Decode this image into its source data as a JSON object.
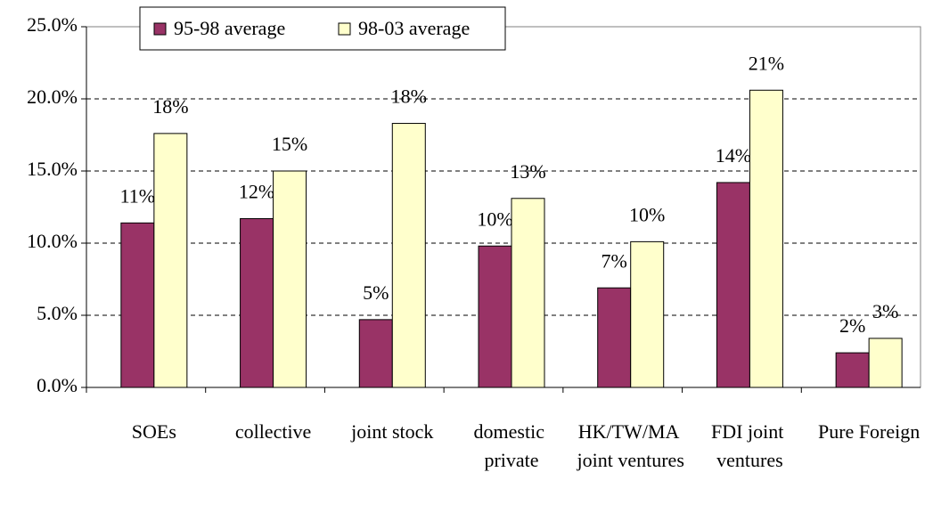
{
  "chart_data": {
    "type": "bar",
    "categories": [
      "SOEs",
      "collective",
      "joint stock",
      "domestic private",
      "HK/TW/MA joint ventures",
      "FDI joint ventures",
      "Pure Foreign"
    ],
    "series": [
      {
        "name": "95-98 average",
        "color": "#993366",
        "values": [
          11.4,
          11.7,
          4.7,
          9.8,
          6.9,
          14.2,
          2.4
        ],
        "value_labels": [
          "11%",
          "12%",
          "5%",
          "10%",
          "7%",
          "14%",
          "2%"
        ]
      },
      {
        "name": "98-03 average",
        "color": "#FFFFCC",
        "values": [
          17.6,
          15.0,
          18.3,
          13.1,
          10.1,
          20.6,
          3.4
        ],
        "value_labels": [
          "18%",
          "15%",
          "18%",
          "13%",
          "10%",
          "21%",
          "3%"
        ]
      }
    ],
    "ylim": [
      0,
      25
    ],
    "yticks": [
      {
        "value": 0,
        "label": "0.0%"
      },
      {
        "value": 5,
        "label": "5.0%"
      },
      {
        "value": 10,
        "label": "10.0%"
      },
      {
        "value": 15,
        "label": "15.0%"
      },
      {
        "value": 20,
        "label": "20.0%"
      },
      {
        "value": 25,
        "label": "25.0%"
      }
    ],
    "grid": true,
    "legend": "top-left"
  }
}
